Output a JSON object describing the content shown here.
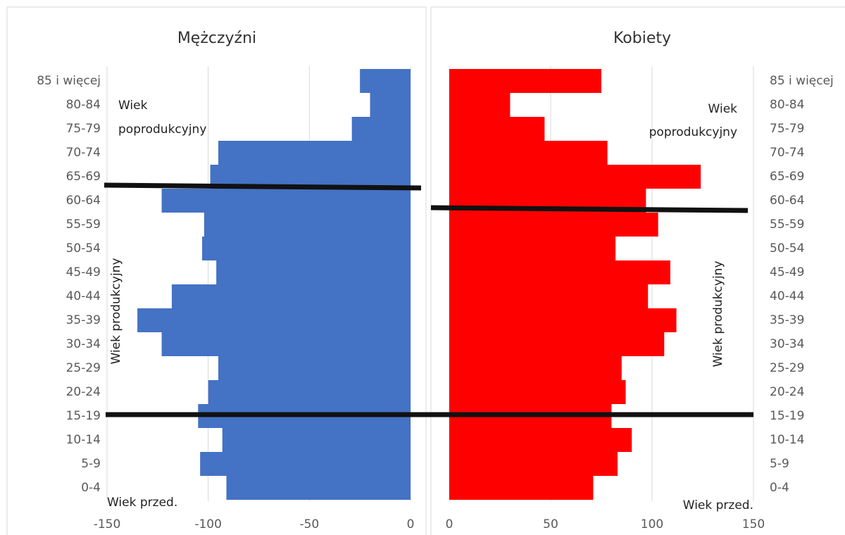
{
  "chart_data": [
    {
      "type": "bar",
      "title": "Mężczyźni",
      "color": "#4472c4",
      "categories": [
        "0-4",
        "5-9",
        "10-14",
        "15-19",
        "20-24",
        "25-29",
        "30-34",
        "35-39",
        "40-44",
        "45-49",
        "50-54",
        "55-59",
        "60-64",
        "65-69",
        "70-74",
        "75-79",
        "80-84",
        "85 i więcej"
      ],
      "values": [
        -91,
        -104,
        -93,
        -105,
        -100,
        -95,
        -123,
        -135,
        -118,
        -96,
        -103,
        -102,
        -123,
        -99,
        -95,
        -29,
        -20,
        -25
      ],
      "xlim": [
        -150,
        0
      ],
      "xticks": [
        -150,
        -100,
        -50,
        0
      ],
      "grid": true,
      "annotations": [
        "Wiek",
        "poprodukcyjny",
        "Wiek produkcyjny",
        "Wiek przed."
      ]
    },
    {
      "type": "bar",
      "title": "Kobiety",
      "color": "#ff0000",
      "categories": [
        "0-4",
        "5-9",
        "10-14",
        "15-19",
        "20-24",
        "25-29",
        "30-34",
        "35-39",
        "40-44",
        "45-49",
        "50-54",
        "55-59",
        "60-64",
        "65-69",
        "70-74",
        "75-79",
        "80-84",
        "85 i więcej"
      ],
      "values": [
        71,
        83,
        90,
        80,
        87,
        85,
        106,
        112,
        98,
        109,
        82,
        103,
        97,
        124,
        78,
        47,
        30,
        75
      ],
      "xlim": [
        0,
        150
      ],
      "xticks": [
        0,
        50,
        100,
        150
      ],
      "grid": true,
      "annotations": [
        "Wiek",
        "poprodukcyjny",
        "Wiek produkcyjny",
        "Wiek przed."
      ]
    }
  ]
}
